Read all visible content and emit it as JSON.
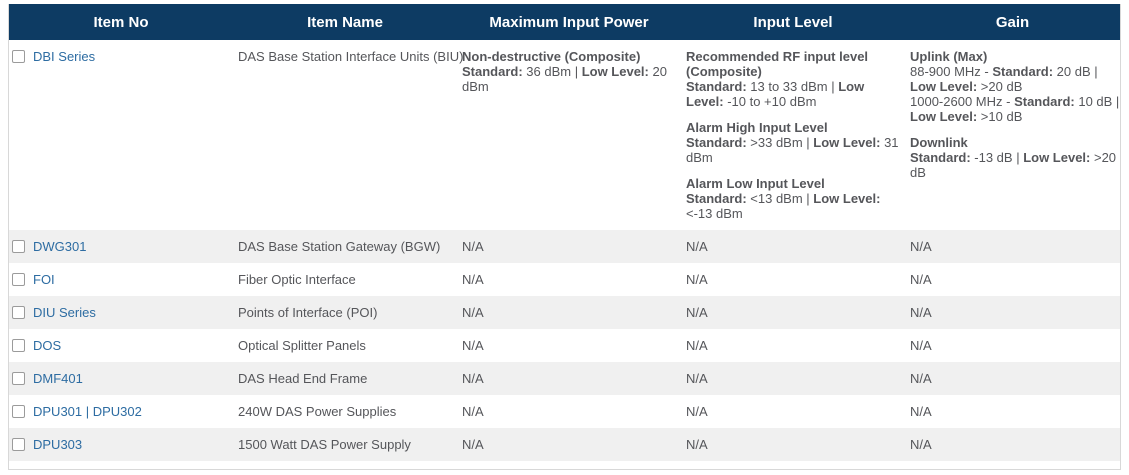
{
  "colors": {
    "header_bg": "#0d3b63",
    "header_text": "#ffffff",
    "stripe_bg": "#f0f0f0",
    "row_bg": "#ffffff",
    "body_text": "#55565a",
    "link": "#2d6ca2",
    "border": "#d8d8d8"
  },
  "table": {
    "headers": [
      "Item No",
      "Item Name",
      "Maximum Input Power",
      "Input Level",
      "Gain"
    ],
    "rows": [
      {
        "item_no": "DBI Series",
        "item_name": "DAS Base Station Interface Units (BIU)",
        "checkbox_checked": false,
        "max_input_power": [
          [
            [
              {
                "t": "Non-destructive (Composite)",
                "b": true
              }
            ],
            [
              {
                "t": "Standard:",
                "b": true
              },
              {
                "t": " 36 dBm | "
              },
              {
                "t": "Low Level:",
                "b": true
              },
              {
                "t": " 20 dBm"
              }
            ]
          ]
        ],
        "input_level": [
          [
            [
              {
                "t": "Recommended RF input level (Composite)",
                "b": true
              }
            ],
            [
              {
                "t": "Standard:",
                "b": true
              },
              {
                "t": " 13 to 33 dBm | "
              },
              {
                "t": "Low Level:",
                "b": true
              },
              {
                "t": " -10 to +10 dBm"
              }
            ]
          ],
          [
            [
              {
                "t": "Alarm High Input Level",
                "b": true
              }
            ],
            [
              {
                "t": "Standard:",
                "b": true
              },
              {
                "t": " >33 dBm | "
              },
              {
                "t": "Low Level:",
                "b": true
              },
              {
                "t": " 31 dBm"
              }
            ]
          ],
          [
            [
              {
                "t": "Alarm Low Input Level",
                "b": true
              }
            ],
            [
              {
                "t": "Standard:",
                "b": true
              },
              {
                "t": " <13 dBm | "
              },
              {
                "t": "Low Level:",
                "b": true
              },
              {
                "t": " <-13 dBm"
              }
            ]
          ]
        ],
        "gain": [
          [
            [
              {
                "t": "Uplink (Max)",
                "b": true
              }
            ],
            [
              {
                "t": "88-900 MHz - "
              },
              {
                "t": "Standard:",
                "b": true
              },
              {
                "t": " 20 dB | "
              },
              {
                "t": "Low Level:",
                "b": true
              },
              {
                "t": " >20 dB"
              }
            ],
            [
              {
                "t": "1000-2600 MHz - "
              },
              {
                "t": "Standard:",
                "b": true
              },
              {
                "t": " 10 dB | "
              },
              {
                "t": "Low Level:",
                "b": true
              },
              {
                "t": " >10 dB"
              }
            ]
          ],
          [
            [
              {
                "t": "Downlink",
                "b": true
              }
            ],
            [
              {
                "t": "Standard:",
                "b": true
              },
              {
                "t": " -13 dB | "
              },
              {
                "t": "Low Level:",
                "b": true
              },
              {
                "t": " >20 dB"
              }
            ]
          ]
        ]
      },
      {
        "item_no": "DWG301",
        "item_name": "DAS Base Station Gateway (BGW)",
        "checkbox_checked": false,
        "max_input_power": "N/A",
        "input_level": "N/A",
        "gain": "N/A"
      },
      {
        "item_no": "FOI",
        "item_name": "Fiber Optic Interface",
        "checkbox_checked": false,
        "max_input_power": "N/A",
        "input_level": "N/A",
        "gain": "N/A"
      },
      {
        "item_no": "DIU Series",
        "item_name": "Points of Interface (POI)",
        "checkbox_checked": false,
        "max_input_power": "N/A",
        "input_level": "N/A",
        "gain": "N/A"
      },
      {
        "item_no": "DOS",
        "item_name": "Optical Splitter Panels",
        "checkbox_checked": false,
        "max_input_power": "N/A",
        "input_level": "N/A",
        "gain": "N/A"
      },
      {
        "item_no": "DMF401",
        "item_name": "DAS Head End Frame",
        "checkbox_checked": false,
        "max_input_power": "N/A",
        "input_level": "N/A",
        "gain": "N/A"
      },
      {
        "item_no": "DPU301 | DPU302",
        "item_name": "240W DAS Power Supplies",
        "checkbox_checked": false,
        "max_input_power": "N/A",
        "input_level": "N/A",
        "gain": "N/A"
      },
      {
        "item_no": "DPU303",
        "item_name": "1500 Watt DAS Power Supply",
        "checkbox_checked": false,
        "max_input_power": "N/A",
        "input_level": "N/A",
        "gain": "N/A"
      }
    ]
  }
}
